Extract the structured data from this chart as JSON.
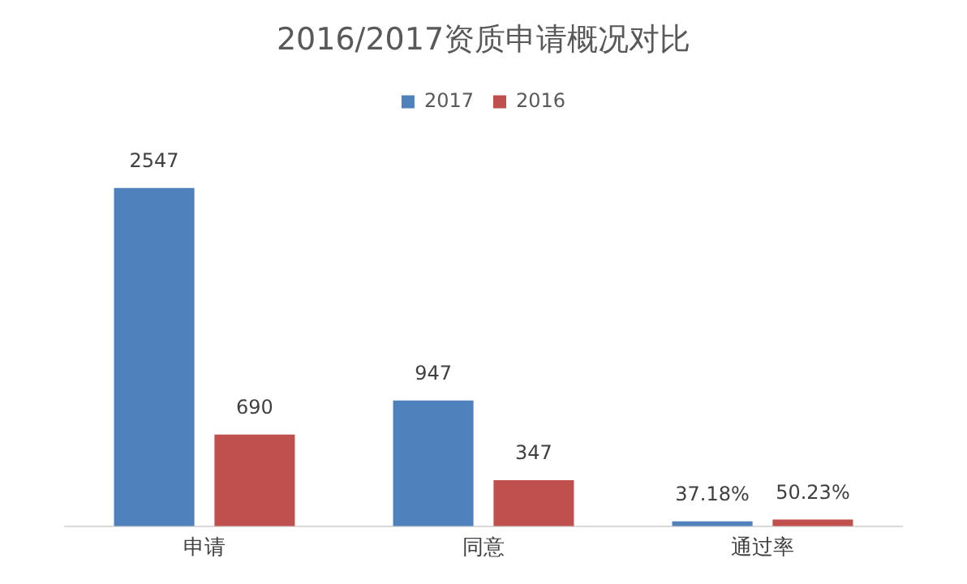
{
  "chart_data": {
    "type": "bar",
    "title": "2016/2017资质申请概况对比",
    "categories": [
      "申请",
      "同意",
      "通过率"
    ],
    "series": [
      {
        "name": "2017",
        "color": "#4f81bd",
        "values": [
          2547,
          947,
          37.18
        ],
        "value_labels": [
          "2547",
          "947",
          "37.18%"
        ]
      },
      {
        "name": "2016",
        "color": "#c0504d",
        "values": [
          690,
          347,
          50.23
        ],
        "value_labels": [
          "690",
          "347",
          "50.23%"
        ]
      }
    ],
    "legend": "top",
    "tick_labels": "x"
  }
}
